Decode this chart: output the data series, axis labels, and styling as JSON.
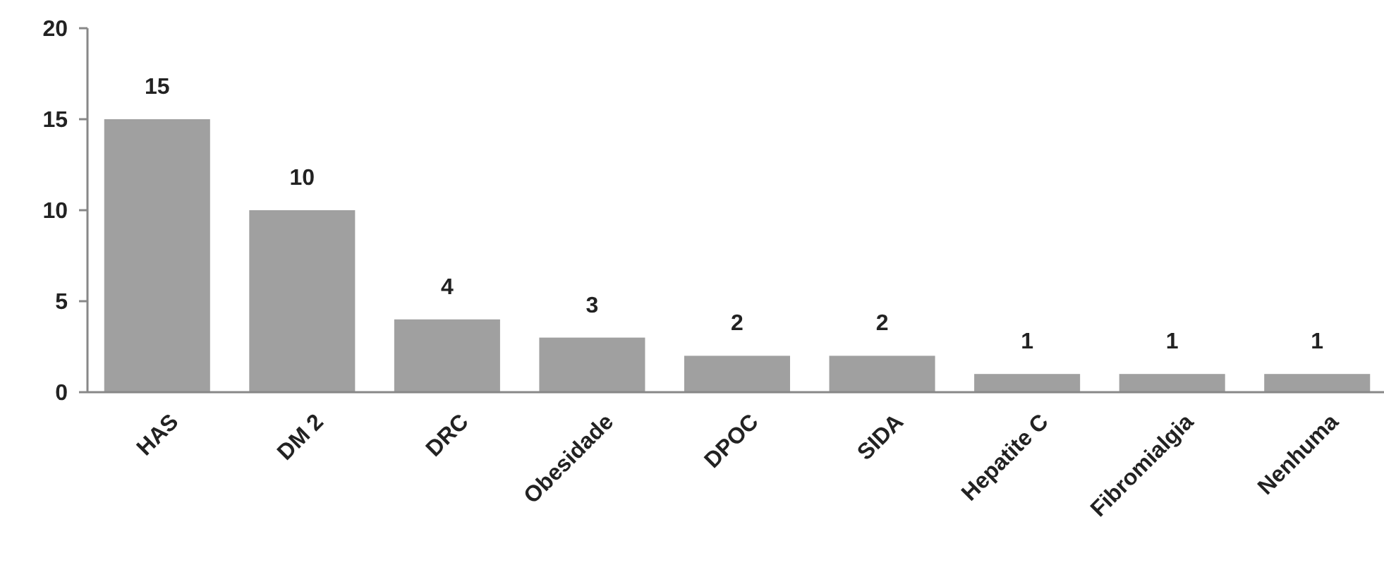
{
  "chart_data": {
    "type": "bar",
    "categories": [
      "HAS",
      "DM 2",
      "DRC",
      "Obesidade",
      "DPOC",
      "SIDA",
      "Hepatite C",
      "Fibromialgia",
      "Nenhuma"
    ],
    "values": [
      15,
      10,
      4,
      3,
      2,
      2,
      1,
      1,
      1
    ],
    "color": "#a0a0a0",
    "ylim": [
      0,
      20
    ],
    "yticks": [
      0,
      5,
      10,
      15,
      20
    ],
    "grid": false,
    "data_labels": true
  }
}
